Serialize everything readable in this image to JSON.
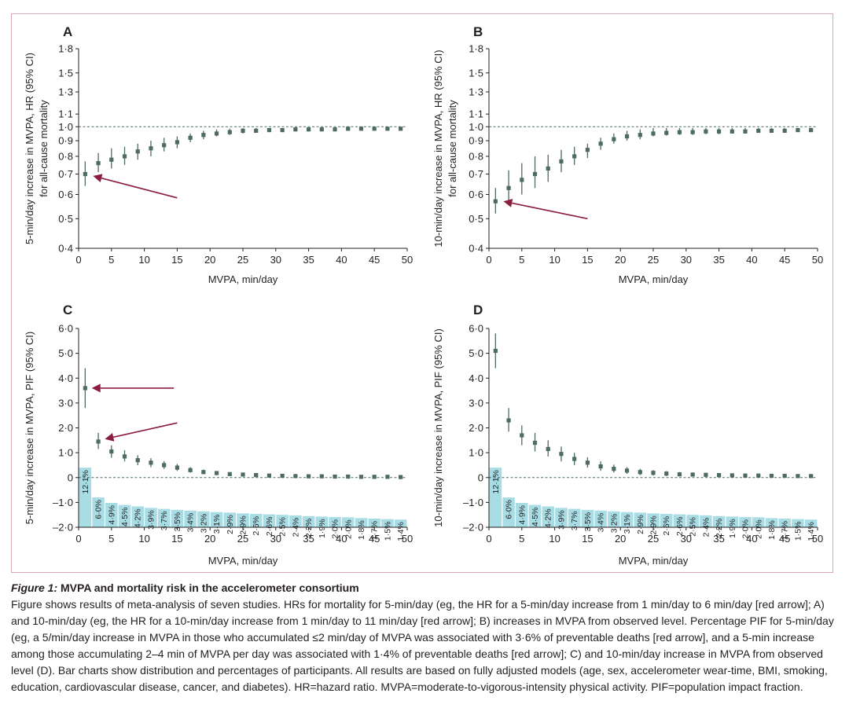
{
  "colors": {
    "marker": "#4e6b63",
    "ci": "#4e6b63",
    "arrow": "#8b1e3f",
    "bar": "#a8dde6",
    "axis": "#231f20",
    "refline": "#4a6a6a",
    "frame": "#d9a7ad"
  },
  "chart_data": [
    {
      "panel": "A",
      "type": "scatter",
      "title": "A",
      "xlabel": "MVPA, min/day",
      "ylabel_lines": [
        "5-min/day increase in MVPA, HR (95% CI)",
        "for all-cause mortality"
      ],
      "xlim": [
        0,
        50
      ],
      "ylim": [
        0.4,
        1.8
      ],
      "yscale": "log",
      "xticks": [
        0,
        5,
        10,
        15,
        20,
        25,
        30,
        35,
        40,
        45,
        50
      ],
      "xtick_labels": [
        "0",
        "5",
        "10",
        "15",
        "20",
        "25",
        "30",
        "35",
        "40",
        "45",
        "50"
      ],
      "yticks": [
        0.4,
        0.5,
        0.6,
        0.7,
        0.8,
        0.9,
        1.0,
        1.1,
        1.3,
        1.5,
        1.8
      ],
      "ytick_labels": [
        "0·4",
        "0·5",
        "0·6",
        "0·7",
        "0·8",
        "0·9",
        "1·0",
        "1·1",
        "1·3",
        "1·5",
        "1·8"
      ],
      "reference_line": 1.0,
      "x": [
        1,
        3,
        5,
        7,
        9,
        11,
        13,
        15,
        17,
        19,
        21,
        23,
        25,
        27,
        29,
        31,
        33,
        35,
        37,
        39,
        41,
        43,
        45,
        47,
        49
      ],
      "y": [
        0.7,
        0.76,
        0.78,
        0.8,
        0.83,
        0.85,
        0.87,
        0.89,
        0.92,
        0.94,
        0.95,
        0.96,
        0.97,
        0.97,
        0.975,
        0.975,
        0.98,
        0.98,
        0.98,
        0.98,
        0.985,
        0.985,
        0.985,
        0.985,
        0.985
      ],
      "ci_low": [
        0.64,
        0.71,
        0.73,
        0.75,
        0.78,
        0.8,
        0.83,
        0.85,
        0.89,
        0.91,
        0.93,
        0.94,
        0.95,
        0.955,
        0.96,
        0.96,
        0.965,
        0.965,
        0.97,
        0.97,
        0.97,
        0.975,
        0.975,
        0.975,
        0.975
      ],
      "ci_high": [
        0.77,
        0.82,
        0.85,
        0.86,
        0.88,
        0.9,
        0.92,
        0.93,
        0.95,
        0.97,
        0.98,
        0.985,
        0.99,
        0.99,
        0.99,
        0.99,
        0.995,
        0.995,
        0.995,
        0.995,
        0.995,
        0.995,
        0.995,
        0.995,
        0.995
      ],
      "arrows": [
        {
          "from": [
            15,
            0.585
          ],
          "to": [
            2.2,
            0.69
          ]
        }
      ]
    },
    {
      "panel": "B",
      "type": "scatter",
      "title": "B",
      "xlabel": "MVPA, min/day",
      "ylabel_lines": [
        "10-min/day increase in MVPA, HR (95% CI)",
        "for all-cause mortality"
      ],
      "xlim": [
        0,
        50
      ],
      "ylim": [
        0.4,
        1.8
      ],
      "yscale": "log",
      "xticks": [
        0,
        5,
        10,
        15,
        20,
        25,
        30,
        35,
        40,
        45,
        50
      ],
      "xtick_labels": [
        "0",
        "5",
        "10",
        "15",
        "20",
        "25",
        "30",
        "35",
        "40",
        "45",
        "50"
      ],
      "yticks": [
        0.4,
        0.5,
        0.6,
        0.7,
        0.8,
        0.9,
        1.0,
        1.1,
        1.3,
        1.5,
        1.8
      ],
      "ytick_labels": [
        "0·4",
        "0·5",
        "0·6",
        "0·7",
        "0·8",
        "0·9",
        "1·0",
        "1·1",
        "1·3",
        "1·5",
        "1·8"
      ],
      "reference_line": 1.0,
      "x": [
        1,
        3,
        5,
        7,
        9,
        11,
        13,
        15,
        17,
        19,
        21,
        23,
        25,
        27,
        29,
        31,
        33,
        35,
        37,
        39,
        41,
        43,
        45,
        47,
        49
      ],
      "y": [
        0.57,
        0.63,
        0.67,
        0.7,
        0.73,
        0.77,
        0.8,
        0.84,
        0.88,
        0.91,
        0.93,
        0.94,
        0.95,
        0.955,
        0.96,
        0.96,
        0.965,
        0.965,
        0.965,
        0.965,
        0.97,
        0.97,
        0.97,
        0.975,
        0.975
      ],
      "ci_low": [
        0.52,
        0.57,
        0.6,
        0.63,
        0.66,
        0.71,
        0.75,
        0.79,
        0.84,
        0.88,
        0.9,
        0.91,
        0.93,
        0.935,
        0.94,
        0.94,
        0.945,
        0.945,
        0.95,
        0.95,
        0.955,
        0.955,
        0.955,
        0.96,
        0.96
      ],
      "ci_high": [
        0.63,
        0.72,
        0.76,
        0.8,
        0.81,
        0.84,
        0.86,
        0.88,
        0.92,
        0.95,
        0.97,
        0.98,
        0.99,
        0.99,
        0.99,
        0.99,
        0.99,
        0.99,
        0.99,
        0.99,
        0.99,
        0.99,
        0.99,
        0.99,
        0.99
      ],
      "arrows": [
        {
          "from": [
            15,
            0.5
          ],
          "to": [
            2.2,
            0.57
          ]
        }
      ]
    },
    {
      "panel": "C",
      "type": "scatter",
      "title": "C",
      "xlabel": "MVPA, min/day",
      "ylabel_lines": [
        "5-min/day increase in MVPA, PIF (95% CI)"
      ],
      "xlim": [
        0,
        50
      ],
      "ylim": [
        -2.0,
        6.0
      ],
      "yscale": "linear",
      "xticks": [
        0,
        5,
        10,
        15,
        20,
        25,
        30,
        35,
        40,
        45,
        50
      ],
      "xtick_labels": [
        "0",
        "5",
        "10",
        "15",
        "20",
        "25",
        "30",
        "35",
        "40",
        "45",
        "50"
      ],
      "yticks": [
        -2,
        -1,
        0,
        1,
        2,
        3,
        4,
        5,
        6
      ],
      "ytick_labels": [
        "–2·0",
        "–1·0",
        "0",
        "1·0",
        "2·0",
        "3·0",
        "4·0",
        "5·0",
        "6·0"
      ],
      "reference_line": 0,
      "x": [
        1,
        3,
        5,
        7,
        9,
        11,
        13,
        15,
        17,
        19,
        21,
        23,
        25,
        27,
        29,
        31,
        33,
        35,
        37,
        39,
        41,
        43,
        45,
        47,
        49
      ],
      "y": [
        3.6,
        1.45,
        1.05,
        0.85,
        0.7,
        0.6,
        0.5,
        0.4,
        0.3,
        0.22,
        0.18,
        0.14,
        0.12,
        0.1,
        0.08,
        0.07,
        0.06,
        0.05,
        0.05,
        0.04,
        0.04,
        0.03,
        0.03,
        0.03,
        0.02
      ],
      "ci_low": [
        2.8,
        1.15,
        0.8,
        0.65,
        0.5,
        0.42,
        0.35,
        0.27,
        0.2,
        0.14,
        0.1,
        0.08,
        0.06,
        0.05,
        0.04,
        0.03,
        0.02,
        0.02,
        0.01,
        0.01,
        0.01,
        0.0,
        0.0,
        0.0,
        0.0
      ],
      "ci_high": [
        4.4,
        1.8,
        1.3,
        1.1,
        0.9,
        0.78,
        0.66,
        0.55,
        0.42,
        0.32,
        0.26,
        0.21,
        0.18,
        0.15,
        0.12,
        0.11,
        0.1,
        0.09,
        0.08,
        0.07,
        0.07,
        0.06,
        0.06,
        0.06,
        0.05
      ],
      "bars": [
        0.4,
        -0.8,
        -1.02,
        -1.1,
        -1.16,
        -1.22,
        -1.26,
        -1.3,
        -1.33,
        -1.36,
        -1.39,
        -1.41,
        -1.44,
        -1.46,
        -1.48,
        -1.5,
        -1.52,
        -1.55,
        -1.57,
        -1.59,
        -1.6,
        -1.63,
        -1.65,
        -1.67,
        -1.69
      ],
      "bar_labels": [
        "12·1%",
        "6·0%",
        "4·9%",
        "4·5%",
        "4·2%",
        "3·9%",
        "3·7%",
        "3·5%",
        "3·4%",
        "3·2%",
        "3·1%",
        "2·9%",
        "2·9%",
        "2·6%",
        "2·6%",
        "2·5%",
        "2·4%",
        "2·2%",
        "1·9%",
        "2·0%",
        "2·0%",
        "1·8%",
        "1·7%",
        "1·5%",
        "1·4%"
      ],
      "arrows": [
        {
          "from": [
            14.5,
            3.6
          ],
          "to": [
            2.0,
            3.6
          ]
        },
        {
          "from": [
            15,
            2.2
          ],
          "to": [
            4.0,
            1.55
          ]
        }
      ]
    },
    {
      "panel": "D",
      "type": "scatter",
      "title": "D",
      "xlabel": "MVPA, min/day",
      "ylabel_lines": [
        "10-min/day increase in MVPA, PIF (95% CI)"
      ],
      "xlim": [
        0,
        50
      ],
      "ylim": [
        -2.0,
        6.0
      ],
      "yscale": "linear",
      "xticks": [
        0,
        5,
        10,
        15,
        20,
        25,
        30,
        35,
        40,
        45,
        50
      ],
      "xtick_labels": [
        "0",
        "5",
        "10",
        "15",
        "20",
        "25",
        "30",
        "35",
        "40",
        "45",
        "50"
      ],
      "yticks": [
        -2,
        -1,
        0,
        1,
        2,
        3,
        4,
        5,
        6
      ],
      "ytick_labels": [
        "–2·0",
        "–1·0",
        "0",
        "1·0",
        "2·0",
        "3·0",
        "4·0",
        "5·0",
        "6·0"
      ],
      "reference_line": 0,
      "x": [
        1,
        3,
        5,
        7,
        9,
        11,
        13,
        15,
        17,
        19,
        21,
        23,
        25,
        27,
        29,
        31,
        33,
        35,
        37,
        39,
        41,
        43,
        45,
        47,
        49
      ],
      "y": [
        5.1,
        2.3,
        1.7,
        1.4,
        1.15,
        0.95,
        0.75,
        0.6,
        0.45,
        0.35,
        0.28,
        0.22,
        0.19,
        0.16,
        0.13,
        0.12,
        0.11,
        0.1,
        0.09,
        0.08,
        0.08,
        0.07,
        0.07,
        0.06,
        0.06
      ],
      "ci_low": [
        4.4,
        1.85,
        1.3,
        1.05,
        0.85,
        0.65,
        0.5,
        0.4,
        0.28,
        0.2,
        0.15,
        0.1,
        0.08,
        0.06,
        0.05,
        0.04,
        0.03,
        0.03,
        0.02,
        0.02,
        0.02,
        0.01,
        0.01,
        0.01,
        0.01
      ],
      "ci_high": [
        5.8,
        2.8,
        2.1,
        1.8,
        1.5,
        1.25,
        1.0,
        0.82,
        0.65,
        0.52,
        0.42,
        0.35,
        0.3,
        0.26,
        0.22,
        0.2,
        0.18,
        0.17,
        0.16,
        0.15,
        0.14,
        0.13,
        0.13,
        0.12,
        0.11
      ],
      "bars": [
        0.4,
        -0.8,
        -1.02,
        -1.1,
        -1.16,
        -1.22,
        -1.26,
        -1.3,
        -1.33,
        -1.36,
        -1.39,
        -1.41,
        -1.44,
        -1.46,
        -1.48,
        -1.5,
        -1.52,
        -1.55,
        -1.57,
        -1.59,
        -1.6,
        -1.63,
        -1.65,
        -1.67,
        -1.69
      ],
      "bar_labels": [
        "12·1%",
        "6·0%",
        "4·9%",
        "4·5%",
        "4·2%",
        "3·9%",
        "3·7%",
        "3·5%",
        "3·4%",
        "3·2%",
        "3·1%",
        "2·9%",
        "2·9%",
        "2·6%",
        "2·6%",
        "2·5%",
        "2·4%",
        "2·2%",
        "1·9%",
        "2·0%",
        "2·0%",
        "1·8%",
        "1·7%",
        "1·5%",
        "1·4%"
      ],
      "arrows": []
    }
  ],
  "caption": {
    "label": "Figure 1:",
    "title": " MVPA and mortality risk in the accelerometer consortium",
    "body": "Figure shows results of meta-analysis of seven studies. HRs for mortality for 5-min/day (eg, the HR for a 5-min/day increase from 1 min/day to 6 min/day [red arrow]; A) and 10-min/day (eg, the HR for a 10-min/day increase from 1 min/day to 11 min/day [red arrow]; B) increases in MVPA from observed level. Percentage PIF for 5-min/day (eg, a 5/min/day increase in MVPA in those who accumulated ≤2 min/day of MVPA was associated with 3·6% of preventable deaths [red arrow], and a 5-min increase among those accumulating 2–4 min of MVPA per day was associated with 1·4% of preventable deaths [red arrow]; C) and 10-min/day increase in MVPA from observed level (D). Bar charts show distribution and percentages of participants. All results are based on fully adjusted models (age, sex, accelerometer wear-time, BMI, smoking, education, cardiovascular disease, cancer, and diabetes). HR=hazard ratio. MVPA=moderate-to-vigorous-intensity physical activity. PIF=population impact fraction."
  }
}
